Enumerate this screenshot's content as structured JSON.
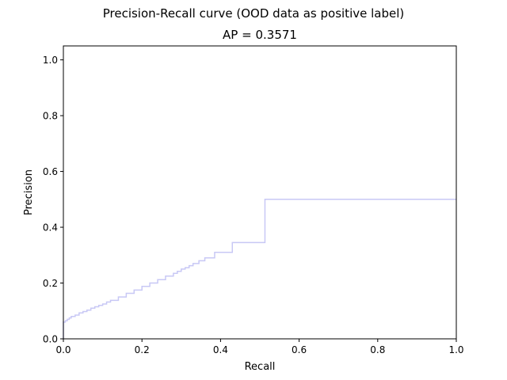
{
  "chart_data": {
    "type": "line",
    "suptitle": "Precision-Recall curve (OOD data as positive label)",
    "title": "AP = 0.3571",
    "xlabel": "Recall",
    "ylabel": "Precision",
    "xlim": [
      0.0,
      1.0
    ],
    "ylim": [
      0.0,
      1.05
    ],
    "xticks": [
      0.0,
      0.2,
      0.4,
      0.6,
      0.8,
      1.0
    ],
    "xtick_labels": [
      "0.0",
      "0.2",
      "0.4",
      "0.6",
      "0.8",
      "1.0"
    ],
    "yticks": [
      0.0,
      0.2,
      0.4,
      0.6,
      0.8,
      1.0
    ],
    "ytick_labels": [
      "0.0",
      "0.2",
      "0.4",
      "0.6",
      "0.8",
      "1.0"
    ],
    "grid": false,
    "line_color": "#c8c8f5",
    "series": [
      {
        "step": "post",
        "x": [
          0.0,
          0.0,
          0.005,
          0.01,
          0.015,
          0.02,
          0.03,
          0.04,
          0.05,
          0.06,
          0.07,
          0.08,
          0.09,
          0.1,
          0.11,
          0.12,
          0.14,
          0.16,
          0.18,
          0.2,
          0.22,
          0.24,
          0.26,
          0.28,
          0.29,
          0.3,
          0.31,
          0.32,
          0.33,
          0.345,
          0.36,
          0.385,
          0.43,
          0.513,
          1.0
        ],
        "y": [
          0.0,
          0.06,
          0.065,
          0.07,
          0.075,
          0.08,
          0.085,
          0.093,
          0.098,
          0.103,
          0.11,
          0.115,
          0.12,
          0.125,
          0.132,
          0.138,
          0.15,
          0.163,
          0.175,
          0.188,
          0.2,
          0.212,
          0.225,
          0.235,
          0.242,
          0.25,
          0.255,
          0.262,
          0.27,
          0.28,
          0.29,
          0.31,
          0.345,
          0.5,
          0.5
        ]
      }
    ]
  }
}
